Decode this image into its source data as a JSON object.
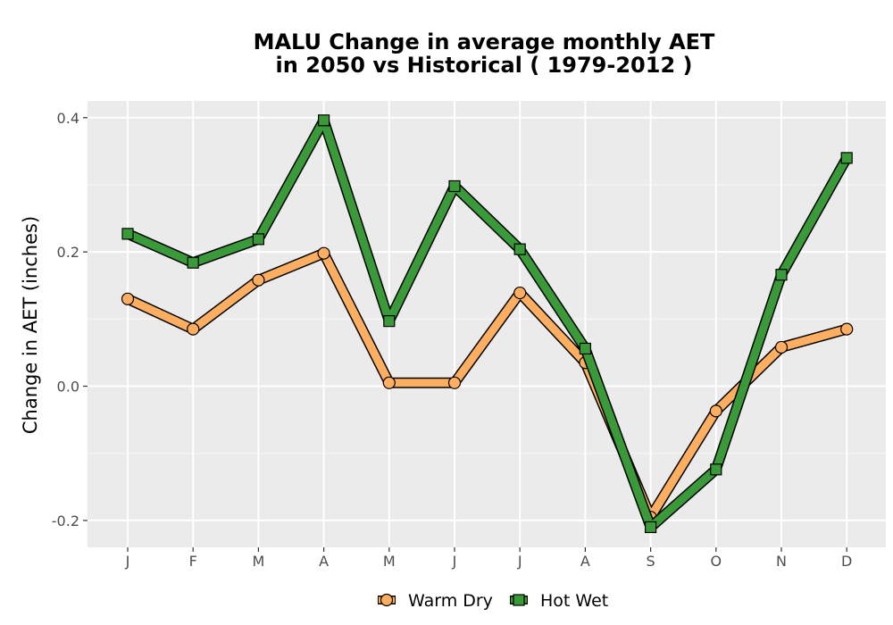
{
  "chart_data": {
    "type": "line",
    "title_lines": [
      "MALU  Change in average monthly AET",
      "in 2050 vs Historical ( 1979-2012 )"
    ],
    "xlabel": "",
    "ylabel": "Change in AET (inches)",
    "categories": [
      "J",
      "F",
      "M",
      "A",
      "M",
      "J",
      "J",
      "A",
      "S",
      "O",
      "N",
      "D"
    ],
    "ylim": [
      -0.24,
      0.425
    ],
    "yticks": [
      -0.2,
      0.0,
      0.2,
      0.4
    ],
    "ytick_labels": [
      "-0.2",
      "0.0",
      "0.2",
      "0.4"
    ],
    "grid": true,
    "legend_position": "bottom",
    "series": [
      {
        "name": "Warm Dry",
        "marker": "circle",
        "color": "#fdae61",
        "values": [
          0.13,
          0.085,
          0.158,
          0.198,
          0.005,
          0.005,
          0.139,
          0.035,
          -0.195,
          -0.037,
          0.058,
          0.085
        ]
      },
      {
        "name": "Hot Wet",
        "marker": "square",
        "color": "#3a9a3a",
        "values": [
          0.227,
          0.184,
          0.219,
          0.396,
          0.097,
          0.298,
          0.204,
          0.056,
          -0.21,
          -0.124,
          0.166,
          0.34
        ]
      }
    ]
  }
}
